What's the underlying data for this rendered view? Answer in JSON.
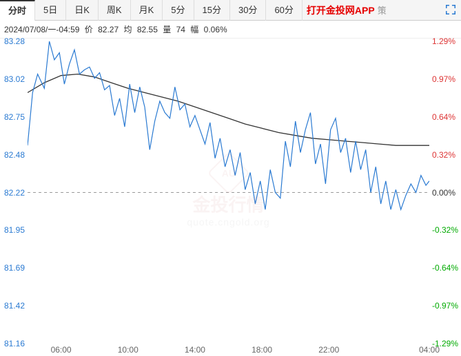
{
  "tabs": [
    "分时",
    "5日",
    "日K",
    "周K",
    "月K",
    "5分",
    "15分",
    "30分",
    "60分"
  ],
  "active_tab": 0,
  "app_link": "打开金投网APP",
  "tab_more": "策",
  "info": {
    "datetime": "2024/07/08/一-04:59",
    "price_label": "价",
    "price": "82.27",
    "avg_label": "均",
    "avg": "82.55",
    "vol_label": "量",
    "vol": "74",
    "amp_label": "幅",
    "amp": "0.06%"
  },
  "watermark": {
    "title": "金投行情",
    "sub": "quote.cngold.org",
    "badge": "AU"
  },
  "chart": {
    "type": "line",
    "ylim": [
      81.16,
      83.28
    ],
    "pct_lim": [
      -1.29,
      1.29
    ],
    "left_ticks": [
      83.28,
      83.02,
      82.75,
      82.48,
      82.22,
      81.95,
      81.69,
      81.42,
      81.16
    ],
    "right_ticks": [
      "1.29%",
      "0.97%",
      "0.64%",
      "0.32%",
      "0.00%",
      "-0.32%",
      "-0.64%",
      "-0.97%",
      "-1.29%"
    ],
    "right_colors": [
      "#d33",
      "#d33",
      "#d33",
      "#d33",
      "#333",
      "#0a0",
      "#0a0",
      "#0a0",
      "#0a0"
    ],
    "left_label_color": "#2a7ad2",
    "x_ticks": [
      "06:00",
      "10:00",
      "14:00",
      "18:00",
      "22:00",
      "04:00"
    ],
    "x_range": [
      4,
      28
    ],
    "zero_line": 82.22,
    "price_color": "#2a7ad2",
    "avg_color": "#333333",
    "zero_dash_color": "#999999",
    "price_line_width": 1.2,
    "avg_line_width": 1.3,
    "background_color": "#ffffff",
    "price_series": [
      [
        4,
        82.55
      ],
      [
        4.3,
        82.92
      ],
      [
        4.6,
        83.05
      ],
      [
        5,
        82.95
      ],
      [
        5.3,
        83.28
      ],
      [
        5.6,
        83.15
      ],
      [
        5.9,
        83.2
      ],
      [
        6.2,
        82.98
      ],
      [
        6.5,
        83.12
      ],
      [
        6.8,
        83.22
      ],
      [
        7.1,
        83.05
      ],
      [
        7.4,
        83.08
      ],
      [
        7.7,
        83.1
      ],
      [
        8,
        83.02
      ],
      [
        8.3,
        83.06
      ],
      [
        8.6,
        82.94
      ],
      [
        8.9,
        82.97
      ],
      [
        9.2,
        82.76
      ],
      [
        9.5,
        82.88
      ],
      [
        9.8,
        82.68
      ],
      [
        10.1,
        82.98
      ],
      [
        10.4,
        82.78
      ],
      [
        10.7,
        82.96
      ],
      [
        11,
        82.82
      ],
      [
        11.3,
        82.52
      ],
      [
        11.6,
        82.72
      ],
      [
        11.9,
        82.86
      ],
      [
        12.2,
        82.78
      ],
      [
        12.5,
        82.74
      ],
      [
        12.8,
        82.96
      ],
      [
        13.1,
        82.8
      ],
      [
        13.4,
        82.84
      ],
      [
        13.7,
        82.68
      ],
      [
        14,
        82.76
      ],
      [
        14.3,
        82.66
      ],
      [
        14.6,
        82.56
      ],
      [
        14.9,
        82.71
      ],
      [
        15.2,
        82.46
      ],
      [
        15.5,
        82.6
      ],
      [
        15.8,
        82.4
      ],
      [
        16.1,
        82.52
      ],
      [
        16.4,
        82.34
      ],
      [
        16.7,
        82.5
      ],
      [
        17,
        82.24
      ],
      [
        17.3,
        82.36
      ],
      [
        17.6,
        82.14
      ],
      [
        17.9,
        82.3
      ],
      [
        18.2,
        82.1
      ],
      [
        18.5,
        82.38
      ],
      [
        18.8,
        82.22
      ],
      [
        19.1,
        82.18
      ],
      [
        19.4,
        82.58
      ],
      [
        19.7,
        82.4
      ],
      [
        20,
        82.72
      ],
      [
        20.3,
        82.5
      ],
      [
        20.6,
        82.66
      ],
      [
        20.9,
        82.78
      ],
      [
        21.2,
        82.42
      ],
      [
        21.5,
        82.56
      ],
      [
        21.8,
        82.28
      ],
      [
        22.1,
        82.66
      ],
      [
        22.4,
        82.74
      ],
      [
        22.7,
        82.5
      ],
      [
        23,
        82.6
      ],
      [
        23.3,
        82.36
      ],
      [
        23.6,
        82.58
      ],
      [
        23.9,
        82.38
      ],
      [
        24.2,
        82.52
      ],
      [
        24.5,
        82.22
      ],
      [
        24.8,
        82.4
      ],
      [
        25.1,
        82.14
      ],
      [
        25.4,
        82.3
      ],
      [
        25.7,
        82.1
      ],
      [
        26,
        82.24
      ],
      [
        26.3,
        82.1
      ],
      [
        26.6,
        82.2
      ],
      [
        26.9,
        82.28
      ],
      [
        27.2,
        82.22
      ],
      [
        27.5,
        82.34
      ],
      [
        27.8,
        82.27
      ],
      [
        28,
        82.3
      ]
    ],
    "avg_series": [
      [
        4,
        82.92
      ],
      [
        5,
        82.99
      ],
      [
        6,
        83.04
      ],
      [
        7,
        83.05
      ],
      [
        8,
        83.03
      ],
      [
        9,
        82.99
      ],
      [
        10,
        82.95
      ],
      [
        11,
        82.92
      ],
      [
        12,
        82.89
      ],
      [
        13,
        82.86
      ],
      [
        14,
        82.82
      ],
      [
        15,
        82.78
      ],
      [
        16,
        82.74
      ],
      [
        17,
        82.7
      ],
      [
        18,
        82.67
      ],
      [
        19,
        82.64
      ],
      [
        20,
        82.62
      ],
      [
        21,
        82.6
      ],
      [
        22,
        82.59
      ],
      [
        23,
        82.58
      ],
      [
        24,
        82.57
      ],
      [
        25,
        82.56
      ],
      [
        26,
        82.55
      ],
      [
        27,
        82.55
      ],
      [
        28,
        82.55
      ]
    ]
  }
}
